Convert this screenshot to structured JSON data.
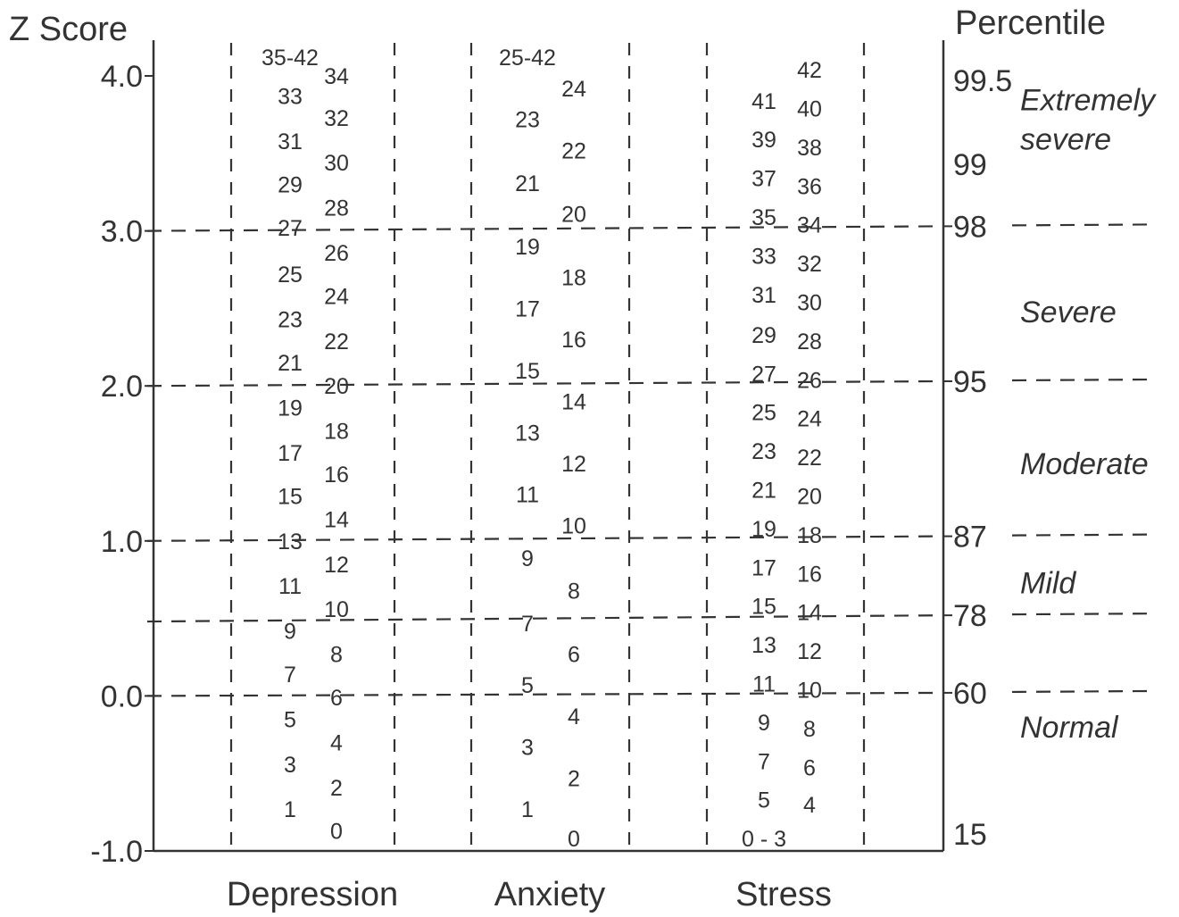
{
  "chart_data": {
    "type": "table",
    "left_axis": {
      "title": "Z Score",
      "ticks": [
        4.0,
        3.0,
        2.0,
        1.0,
        0.0,
        -1.0
      ],
      "tick_labels": [
        "4.0",
        "3.0",
        "2.0",
        "1.0",
        "0.0",
        "-1.0"
      ],
      "range": [
        -1.0,
        4.0
      ]
    },
    "right_axis": {
      "title": "Percentile",
      "labels": [
        {
          "text": "99.5",
          "z": 3.97
        },
        {
          "text": "99",
          "z": 3.43
        },
        {
          "text": "98",
          "z": 3.03
        },
        {
          "text": "95",
          "z": 2.03
        },
        {
          "text": "87",
          "z": 1.03
        },
        {
          "text": "78",
          "z": 0.52
        },
        {
          "text": "60",
          "z": 0.02
        },
        {
          "text": "15",
          "z": -0.89
        }
      ]
    },
    "cutoffs": [
      {
        "z": 3.0,
        "right_z": 3.03
      },
      {
        "z": 2.0,
        "right_z": 2.03
      },
      {
        "z": 1.0,
        "right_z": 1.03
      },
      {
        "z": 0.48,
        "right_z": 0.52
      },
      {
        "z": 0.0,
        "right_z": 0.02
      }
    ],
    "severity_labels": [
      {
        "lines": [
          "Extremely",
          "severe"
        ],
        "z": 3.72
      },
      {
        "lines": [
          "Severe"
        ],
        "z": 2.48
      },
      {
        "lines": [
          "Moderate"
        ],
        "z": 1.5
      },
      {
        "lines": [
          "Mild"
        ],
        "z": 0.73
      },
      {
        "lines": [
          "Normal"
        ],
        "z": -0.2
      }
    ],
    "categories": [
      "Depression",
      "Anxiety",
      "Stress"
    ],
    "scales": [
      {
        "name": "Depression",
        "left_column": [
          {
            "text": "35-42",
            "z": 4.12
          },
          {
            "text": "33",
            "z": 3.87
          },
          {
            "text": "31",
            "z": 3.58
          },
          {
            "text": "29",
            "z": 3.3
          },
          {
            "text": "27",
            "z": 3.02
          },
          {
            "text": "25",
            "z": 2.72
          },
          {
            "text": "23",
            "z": 2.43
          },
          {
            "text": "21",
            "z": 2.15
          },
          {
            "text": "19",
            "z": 1.86
          },
          {
            "text": "17",
            "z": 1.57
          },
          {
            "text": "15",
            "z": 1.29
          },
          {
            "text": "13",
            "z": 1.0
          },
          {
            "text": "11",
            "z": 0.71
          },
          {
            "text": "9",
            "z": 0.42
          },
          {
            "text": "7",
            "z": 0.14
          },
          {
            "text": "5",
            "z": -0.15
          },
          {
            "text": "3",
            "z": -0.44
          },
          {
            "text": "1",
            "z": -0.73
          }
        ],
        "right_column": [
          {
            "text": "34",
            "z": 4.0
          },
          {
            "text": "32",
            "z": 3.73
          },
          {
            "text": "30",
            "z": 3.44
          },
          {
            "text": "28",
            "z": 3.15
          },
          {
            "text": "26",
            "z": 2.86
          },
          {
            "text": "24",
            "z": 2.58
          },
          {
            "text": "22",
            "z": 2.29
          },
          {
            "text": "20",
            "z": 2.0
          },
          {
            "text": "18",
            "z": 1.71
          },
          {
            "text": "16",
            "z": 1.43
          },
          {
            "text": "14",
            "z": 1.14
          },
          {
            "text": "12",
            "z": 0.85
          },
          {
            "text": "10",
            "z": 0.56
          },
          {
            "text": "8",
            "z": 0.27
          },
          {
            "text": "6",
            "z": -0.01
          },
          {
            "text": "4",
            "z": -0.3
          },
          {
            "text": "2",
            "z": -0.59
          },
          {
            "text": "0",
            "z": -0.87
          }
        ]
      },
      {
        "name": "Anxiety",
        "left_column": [
          {
            "text": "25-42",
            "z": 4.12
          },
          {
            "text": "23",
            "z": 3.72
          },
          {
            "text": "21",
            "z": 3.31
          },
          {
            "text": "19",
            "z": 2.9
          },
          {
            "text": "17",
            "z": 2.5
          },
          {
            "text": "15",
            "z": 2.1
          },
          {
            "text": "13",
            "z": 1.7
          },
          {
            "text": "11",
            "z": 1.3
          },
          {
            "text": "9",
            "z": 0.89
          },
          {
            "text": "7",
            "z": 0.47
          },
          {
            "text": "5",
            "z": 0.07
          },
          {
            "text": "3",
            "z": -0.33
          },
          {
            "text": "1",
            "z": -0.73
          }
        ],
        "right_column": [
          {
            "text": "24",
            "z": 3.92
          },
          {
            "text": "22",
            "z": 3.52
          },
          {
            "text": "20",
            "z": 3.11
          },
          {
            "text": "18",
            "z": 2.7
          },
          {
            "text": "16",
            "z": 2.3
          },
          {
            "text": "14",
            "z": 1.9
          },
          {
            "text": "12",
            "z": 1.5
          },
          {
            "text": "10",
            "z": 1.1
          },
          {
            "text": "8",
            "z": 0.68
          },
          {
            "text": "6",
            "z": 0.27
          },
          {
            "text": "4",
            "z": -0.13
          },
          {
            "text": "2",
            "z": -0.53
          },
          {
            "text": "0",
            "z": -0.92
          }
        ]
      },
      {
        "name": "Stress",
        "left_column": [
          {
            "text": "41",
            "z": 3.84
          },
          {
            "text": "39",
            "z": 3.59
          },
          {
            "text": "37",
            "z": 3.34
          },
          {
            "text": "35",
            "z": 3.09
          },
          {
            "text": "33",
            "z": 2.84
          },
          {
            "text": "31",
            "z": 2.59
          },
          {
            "text": "29",
            "z": 2.33
          },
          {
            "text": "27",
            "z": 2.08
          },
          {
            "text": "25",
            "z": 1.83
          },
          {
            "text": "23",
            "z": 1.58
          },
          {
            "text": "21",
            "z": 1.33
          },
          {
            "text": "19",
            "z": 1.08
          },
          {
            "text": "17",
            "z": 0.83
          },
          {
            "text": "15",
            "z": 0.58
          },
          {
            "text": "13",
            "z": 0.33
          },
          {
            "text": "11",
            "z": 0.08
          },
          {
            "text": "9",
            "z": -0.17
          },
          {
            "text": "7",
            "z": -0.42
          },
          {
            "text": "5",
            "z": -0.67
          },
          {
            "text": "0 - 3",
            "z": -0.92
          }
        ],
        "right_column": [
          {
            "text": "42",
            "z": 4.04
          },
          {
            "text": "40",
            "z": 3.79
          },
          {
            "text": "38",
            "z": 3.54
          },
          {
            "text": "36",
            "z": 3.29
          },
          {
            "text": "34",
            "z": 3.04
          },
          {
            "text": "32",
            "z": 2.79
          },
          {
            "text": "30",
            "z": 2.54
          },
          {
            "text": "28",
            "z": 2.29
          },
          {
            "text": "26",
            "z": 2.04
          },
          {
            "text": "24",
            "z": 1.79
          },
          {
            "text": "22",
            "z": 1.54
          },
          {
            "text": "20",
            "z": 1.29
          },
          {
            "text": "18",
            "z": 1.04
          },
          {
            "text": "16",
            "z": 0.79
          },
          {
            "text": "14",
            "z": 0.54
          },
          {
            "text": "12",
            "z": 0.29
          },
          {
            "text": "10",
            "z": 0.04
          },
          {
            "text": "8",
            "z": -0.21
          },
          {
            "text": "6",
            "z": -0.46
          },
          {
            "text": "4",
            "z": -0.7
          }
        ]
      }
    ],
    "grid": false,
    "legend": "none",
    "colors": {
      "ink": "#333333",
      "background": "#ffffff"
    }
  }
}
